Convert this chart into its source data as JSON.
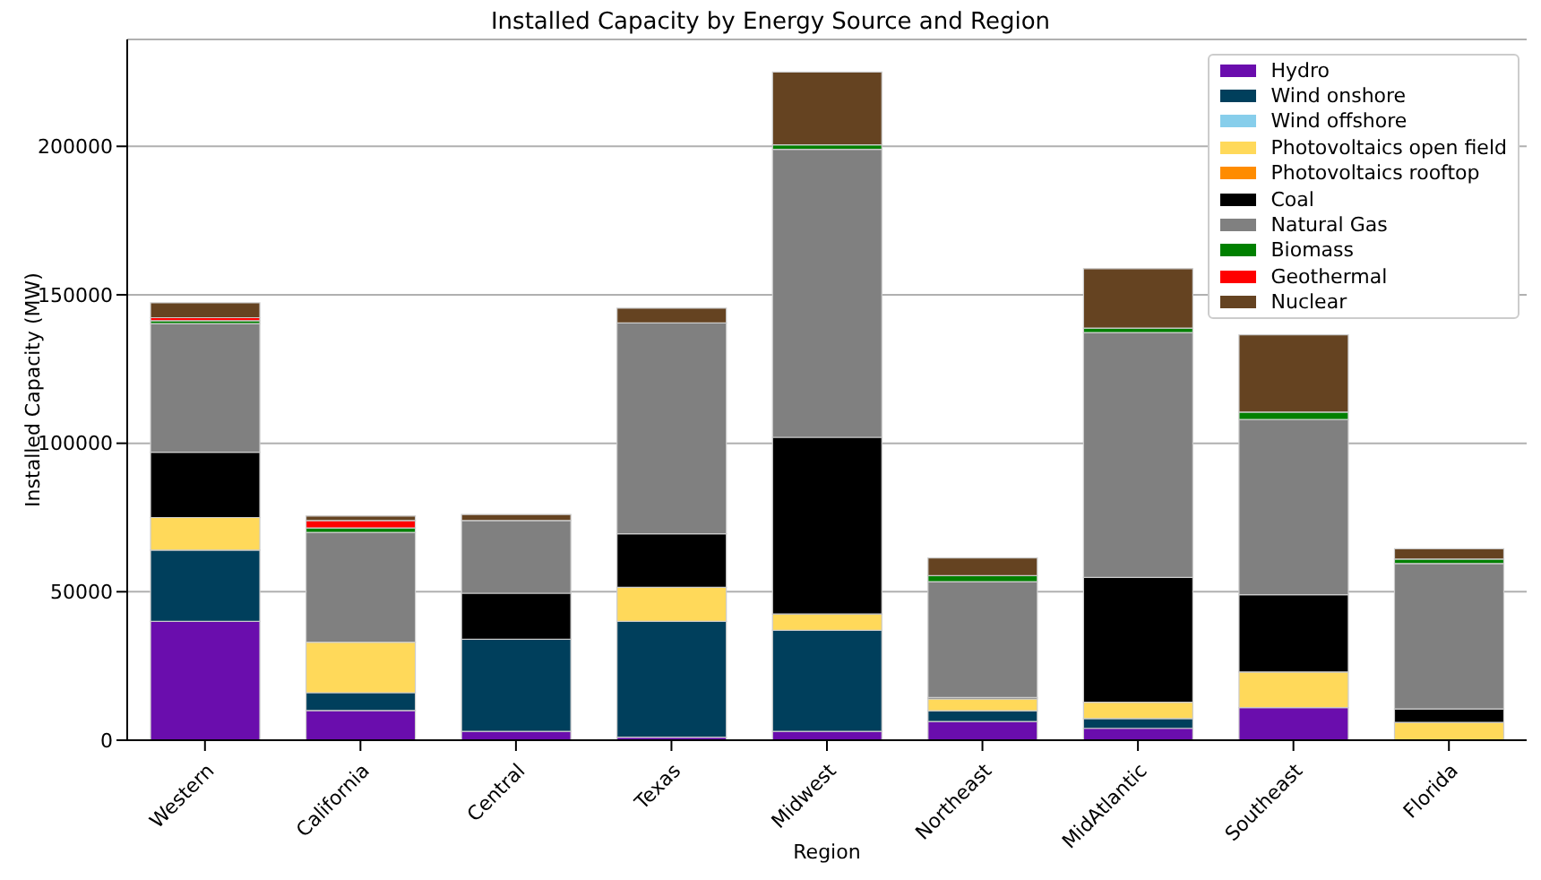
{
  "chart_data": {
    "type": "bar",
    "stacked": true,
    "title": "Installed Capacity by Energy Source and Region",
    "xlabel": "Region",
    "ylabel": "Installed Capacity (MW)",
    "categories": [
      "Western",
      "California",
      "Central",
      "Texas",
      "Midwest",
      "Northeast",
      "MidAtlantic",
      "Southeast",
      "Florida"
    ],
    "series": [
      {
        "name": "Hydro",
        "color": "#6a0dad",
        "values": [
          40000,
          10000,
          3000,
          1000,
          3000,
          6300,
          4000,
          11000,
          0
        ]
      },
      {
        "name": "Wind onshore",
        "color": "#003f5c",
        "values": [
          24000,
          6000,
          31000,
          39000,
          34000,
          3600,
          3300,
          0,
          0
        ]
      },
      {
        "name": "Wind offshore",
        "color": "#87ceeb",
        "values": [
          0,
          0,
          0,
          0,
          0,
          0,
          0,
          0,
          0
        ]
      },
      {
        "name": "Photovoltaics open field",
        "color": "#ffd95a",
        "values": [
          11000,
          17000,
          0,
          11500,
          5500,
          4000,
          5500,
          12000,
          6000
        ]
      },
      {
        "name": "Photovoltaics rooftop",
        "color": "#ff8c00",
        "values": [
          0,
          0,
          0,
          0,
          0,
          0,
          0,
          0,
          0
        ]
      },
      {
        "name": "Coal",
        "color": "#000000",
        "values": [
          22000,
          0,
          15500,
          18000,
          59500,
          500,
          42000,
          26000,
          4500
        ]
      },
      {
        "name": "Natural Gas",
        "color": "#808080",
        "values": [
          43300,
          37000,
          24500,
          71000,
          97000,
          39000,
          82500,
          59000,
          49000
        ]
      },
      {
        "name": "Biomass",
        "color": "#008000",
        "values": [
          1000,
          1500,
          null,
          null,
          1500,
          2000,
          1500,
          2500,
          1500
        ]
      },
      {
        "name": "Geothermal",
        "color": "#ff0000",
        "values": [
          1000,
          2500,
          0,
          0,
          0,
          0,
          0,
          0,
          0
        ]
      },
      {
        "name": "Nuclear",
        "color": "#654321",
        "values": [
          5000,
          1500,
          2000,
          5000,
          24500,
          6000,
          20000,
          26000,
          3500
        ]
      }
    ],
    "ylim": [
      0,
      236000
    ],
    "yticks": [
      0,
      50000,
      100000,
      150000,
      200000
    ],
    "grid": "y",
    "legend": "top right"
  }
}
